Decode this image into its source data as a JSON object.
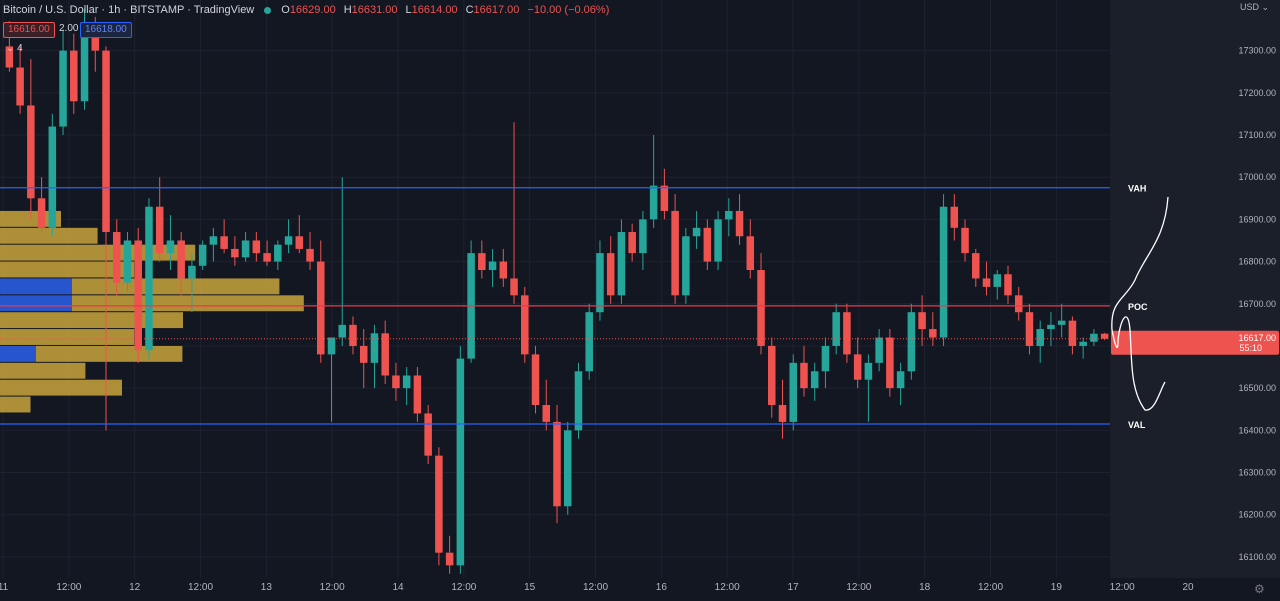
{
  "header": {
    "title": "Bitcoin / U.S. Dollar · 1h · BITSTAMP · TradingView",
    "ohlc": [
      {
        "label": "O",
        "value": "16629.00"
      },
      {
        "label": "H",
        "value": "16631.00"
      },
      {
        "label": "L",
        "value": "16614.00"
      },
      {
        "label": "C",
        "value": "16617.00"
      },
      {
        "label": "",
        "value": "−10.00 (−0.06%)"
      }
    ],
    "sell_price": "16616.00",
    "spread": "2.00",
    "buy_price": "16618.00",
    "indicators_count": "4"
  },
  "price_scale": {
    "currency": "USD",
    "current_price": "16617.00",
    "countdown": "55:10"
  },
  "colors": {
    "background": "#131722",
    "up": "#26a69a",
    "down": "#ef5350",
    "level_blue": "#2962ff",
    "level_red": "#f23645",
    "profile_yellow": "#c9a43c",
    "profile_blue": "#2a5ce0"
  },
  "icons": {
    "settings": "gear-icon",
    "indicators": "chevron-down-icon"
  },
  "chart_data": {
    "type": "candlestick",
    "x_ticks": [
      "11",
      "12:00",
      "12",
      "12:00",
      "13",
      "12:00",
      "14",
      "12:00",
      "15",
      "12:00",
      "16",
      "12:00",
      "17",
      "12:00",
      "18",
      "12:00",
      "19",
      "12:00",
      "20"
    ],
    "y_ticks": [
      "17300.00",
      "17200.00",
      "17100.00",
      "17000.00",
      "16900.00",
      "16800.00",
      "16700.00",
      "16600.00",
      "16500.00",
      "16400.00",
      "16300.00",
      "16200.00",
      "16100.00"
    ],
    "ylim": [
      16050,
      17420
    ],
    "levels": [
      {
        "name": "VAH",
        "value": 16975
      },
      {
        "name": "POC",
        "value": 16695
      },
      {
        "name": "VAL",
        "value": 16415
      }
    ],
    "last_price": 16617,
    "volume_profile_price_range": [
      16440,
      16960
    ],
    "volume_profile_up": [
      0,
      0,
      0,
      0,
      0,
      4,
      4,
      0,
      0,
      2,
      0,
      0,
      0
    ],
    "volume_profile_down": [
      0,
      10,
      16,
      32,
      22,
      34,
      38,
      30,
      22,
      24,
      14,
      20,
      5
    ],
    "candles": [
      [
        17310,
        17370,
        17250,
        17260
      ],
      [
        17260,
        17310,
        17150,
        17170
      ],
      [
        17170,
        17280,
        16900,
        16950
      ],
      [
        16950,
        17000,
        16870,
        16880
      ],
      [
        16880,
        17150,
        16860,
        17120
      ],
      [
        17120,
        17350,
        17100,
        17300
      ],
      [
        17300,
        17340,
        17150,
        17180
      ],
      [
        17180,
        17400,
        17160,
        17360
      ],
      [
        17360,
        17380,
        17250,
        17300
      ],
      [
        17300,
        17310,
        16400,
        16870
      ],
      [
        16870,
        16900,
        16720,
        16750
      ],
      [
        16750,
        16870,
        16730,
        16850
      ],
      [
        16850,
        16880,
        16560,
        16590
      ],
      [
        16590,
        16950,
        16570,
        16930
      ],
      [
        16930,
        17000,
        16800,
        16820
      ],
      [
        16820,
        16910,
        16780,
        16850
      ],
      [
        16850,
        16870,
        16720,
        16760
      ],
      [
        16760,
        16820,
        16680,
        16790
      ],
      [
        16790,
        16850,
        16780,
        16840
      ],
      [
        16840,
        16880,
        16800,
        16860
      ],
      [
        16860,
        16900,
        16820,
        16830
      ],
      [
        16830,
        16860,
        16790,
        16810
      ],
      [
        16810,
        16870,
        16800,
        16850
      ],
      [
        16850,
        16870,
        16800,
        16820
      ],
      [
        16820,
        16850,
        16790,
        16800
      ],
      [
        16800,
        16850,
        16780,
        16840
      ],
      [
        16840,
        16900,
        16820,
        16860
      ],
      [
        16860,
        16910,
        16820,
        16830
      ],
      [
        16830,
        16870,
        16780,
        16800
      ],
      [
        16800,
        16850,
        16560,
        16580
      ],
      [
        16580,
        16620,
        16420,
        16620
      ],
      [
        16620,
        17000,
        16600,
        16650
      ],
      [
        16650,
        16670,
        16580,
        16600
      ],
      [
        16600,
        16640,
        16500,
        16560
      ],
      [
        16560,
        16650,
        16500,
        16630
      ],
      [
        16630,
        16660,
        16510,
        16530
      ],
      [
        16530,
        16560,
        16470,
        16500
      ],
      [
        16500,
        16550,
        16460,
        16530
      ],
      [
        16530,
        16550,
        16420,
        16440
      ],
      [
        16440,
        16460,
        16320,
        16340
      ],
      [
        16340,
        16360,
        16080,
        16110
      ],
      [
        16110,
        16150,
        16060,
        16080
      ],
      [
        16080,
        16600,
        16060,
        16570
      ],
      [
        16570,
        16850,
        16560,
        16820
      ],
      [
        16820,
        16850,
        16760,
        16780
      ],
      [
        16780,
        16830,
        16740,
        16800
      ],
      [
        16800,
        16830,
        16740,
        16760
      ],
      [
        16760,
        17130,
        16700,
        16720
      ],
      [
        16720,
        16740,
        16560,
        16580
      ],
      [
        16580,
        16600,
        16440,
        16460
      ],
      [
        16460,
        16520,
        16400,
        16420
      ],
      [
        16420,
        16460,
        16180,
        16220
      ],
      [
        16220,
        16420,
        16200,
        16400
      ],
      [
        16400,
        16560,
        16380,
        16540
      ],
      [
        16540,
        16700,
        16520,
        16680
      ],
      [
        16680,
        16850,
        16660,
        16820
      ],
      [
        16820,
        16860,
        16700,
        16720
      ],
      [
        16720,
        16900,
        16700,
        16870
      ],
      [
        16870,
        16890,
        16800,
        16820
      ],
      [
        16820,
        16920,
        16780,
        16900
      ],
      [
        16900,
        17100,
        16880,
        16980
      ],
      [
        16980,
        17020,
        16900,
        16920
      ],
      [
        16920,
        16960,
        16700,
        16720
      ],
      [
        16720,
        16880,
        16700,
        16860
      ],
      [
        16860,
        16920,
        16830,
        16880
      ],
      [
        16880,
        16900,
        16780,
        16800
      ],
      [
        16800,
        16920,
        16780,
        16900
      ],
      [
        16900,
        16950,
        16860,
        16920
      ],
      [
        16920,
        16960,
        16840,
        16860
      ],
      [
        16860,
        16900,
        16760,
        16780
      ],
      [
        16780,
        16820,
        16580,
        16600
      ],
      [
        16600,
        16620,
        16430,
        16460
      ],
      [
        16460,
        16520,
        16380,
        16420
      ],
      [
        16420,
        16580,
        16400,
        16560
      ],
      [
        16560,
        16600,
        16480,
        16500
      ],
      [
        16500,
        16560,
        16470,
        16540
      ],
      [
        16540,
        16620,
        16500,
        16600
      ],
      [
        16600,
        16700,
        16580,
        16680
      ],
      [
        16680,
        16700,
        16560,
        16580
      ],
      [
        16580,
        16620,
        16500,
        16520
      ],
      [
        16520,
        16580,
        16420,
        16560
      ],
      [
        16560,
        16640,
        16540,
        16620
      ],
      [
        16620,
        16640,
        16480,
        16500
      ],
      [
        16500,
        16560,
        16460,
        16540
      ],
      [
        16540,
        16700,
        16520,
        16680
      ],
      [
        16680,
        16720,
        16600,
        16640
      ],
      [
        16640,
        16680,
        16600,
        16620
      ],
      [
        16620,
        16960,
        16600,
        16930
      ],
      [
        16930,
        16960,
        16850,
        16880
      ],
      [
        16880,
        16900,
        16800,
        16820
      ],
      [
        16820,
        16830,
        16740,
        16760
      ],
      [
        16760,
        16800,
        16720,
        16740
      ],
      [
        16740,
        16780,
        16710,
        16770
      ],
      [
        16770,
        16790,
        16700,
        16720
      ],
      [
        16720,
        16740,
        16660,
        16680
      ],
      [
        16680,
        16700,
        16580,
        16600
      ],
      [
        16600,
        16660,
        16560,
        16640
      ],
      [
        16640,
        16680,
        16600,
        16650
      ],
      [
        16650,
        16700,
        16620,
        16660
      ],
      [
        16660,
        16670,
        16580,
        16600
      ],
      [
        16600,
        16620,
        16570,
        16610
      ],
      [
        16610,
        16640,
        16600,
        16629
      ],
      [
        16629,
        16631,
        16614,
        16617
      ]
    ]
  }
}
